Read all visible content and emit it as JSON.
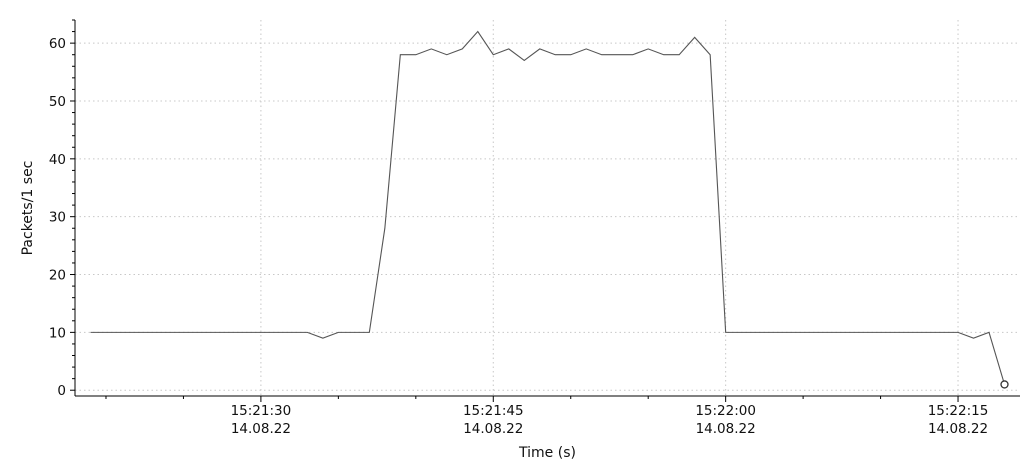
{
  "chart_data": {
    "type": "line",
    "xlabel": "Time (s)",
    "ylabel": "Packets/1 sec",
    "xlim": [
      "15:21:18",
      "15:22:19"
    ],
    "ylim": [
      -1,
      64
    ],
    "yticks": [
      0,
      10,
      20,
      30,
      40,
      50,
      60
    ],
    "xticks": [
      {
        "time": "15:21:30",
        "label_time": "15:21:30",
        "label_date": "14.08.22"
      },
      {
        "time": "15:21:45",
        "label_time": "15:21:45",
        "label_date": "14.08.22"
      },
      {
        "time": "15:22:00",
        "label_time": "15:22:00",
        "label_date": "14.08.22"
      },
      {
        "time": "15:22:15",
        "label_time": "15:22:15",
        "label_date": "14.08.22"
      }
    ],
    "x_minor_tick_interval_seconds": 5,
    "y_minor_tick_interval": 2,
    "grid": true,
    "series": [
      {
        "color": "#555555",
        "end_marker": "circle",
        "points": [
          {
            "t": "15:21:19",
            "v": 10
          },
          {
            "t": "15:21:20",
            "v": 10
          },
          {
            "t": "15:21:21",
            "v": 10
          },
          {
            "t": "15:21:22",
            "v": 10
          },
          {
            "t": "15:21:23",
            "v": 10
          },
          {
            "t": "15:21:24",
            "v": 10
          },
          {
            "t": "15:21:25",
            "v": 10
          },
          {
            "t": "15:21:26",
            "v": 10
          },
          {
            "t": "15:21:27",
            "v": 10
          },
          {
            "t": "15:21:28",
            "v": 10
          },
          {
            "t": "15:21:29",
            "v": 10
          },
          {
            "t": "15:21:30",
            "v": 10
          },
          {
            "t": "15:21:31",
            "v": 10
          },
          {
            "t": "15:21:32",
            "v": 10
          },
          {
            "t": "15:21:33",
            "v": 10
          },
          {
            "t": "15:21:34",
            "v": 9
          },
          {
            "t": "15:21:35",
            "v": 10
          },
          {
            "t": "15:21:36",
            "v": 10
          },
          {
            "t": "15:21:37",
            "v": 10
          },
          {
            "t": "15:21:38",
            "v": 28
          },
          {
            "t": "15:21:39",
            "v": 58
          },
          {
            "t": "15:21:40",
            "v": 58
          },
          {
            "t": "15:21:41",
            "v": 59
          },
          {
            "t": "15:21:42",
            "v": 58
          },
          {
            "t": "15:21:43",
            "v": 59
          },
          {
            "t": "15:21:44",
            "v": 62
          },
          {
            "t": "15:21:45",
            "v": 58
          },
          {
            "t": "15:21:46",
            "v": 59
          },
          {
            "t": "15:21:47",
            "v": 57
          },
          {
            "t": "15:21:48",
            "v": 59
          },
          {
            "t": "15:21:49",
            "v": 58
          },
          {
            "t": "15:21:50",
            "v": 58
          },
          {
            "t": "15:21:51",
            "v": 59
          },
          {
            "t": "15:21:52",
            "v": 58
          },
          {
            "t": "15:21:53",
            "v": 58
          },
          {
            "t": "15:21:54",
            "v": 58
          },
          {
            "t": "15:21:55",
            "v": 59
          },
          {
            "t": "15:21:56",
            "v": 58
          },
          {
            "t": "15:21:57",
            "v": 58
          },
          {
            "t": "15:21:58",
            "v": 61
          },
          {
            "t": "15:21:59",
            "v": 58
          },
          {
            "t": "15:22:00",
            "v": 10
          },
          {
            "t": "15:22:01",
            "v": 10
          },
          {
            "t": "15:22:02",
            "v": 10
          },
          {
            "t": "15:22:03",
            "v": 10
          },
          {
            "t": "15:22:04",
            "v": 10
          },
          {
            "t": "15:22:05",
            "v": 10
          },
          {
            "t": "15:22:06",
            "v": 10
          },
          {
            "t": "15:22:07",
            "v": 10
          },
          {
            "t": "15:22:08",
            "v": 10
          },
          {
            "t": "15:22:09",
            "v": 10
          },
          {
            "t": "15:22:10",
            "v": 10
          },
          {
            "t": "15:22:11",
            "v": 10
          },
          {
            "t": "15:22:12",
            "v": 10
          },
          {
            "t": "15:22:13",
            "v": 10
          },
          {
            "t": "15:22:14",
            "v": 10
          },
          {
            "t": "15:22:15",
            "v": 10
          },
          {
            "t": "15:22:16",
            "v": 9
          },
          {
            "t": "15:22:17",
            "v": 10
          },
          {
            "t": "15:22:18",
            "v": 1
          }
        ]
      }
    ]
  }
}
